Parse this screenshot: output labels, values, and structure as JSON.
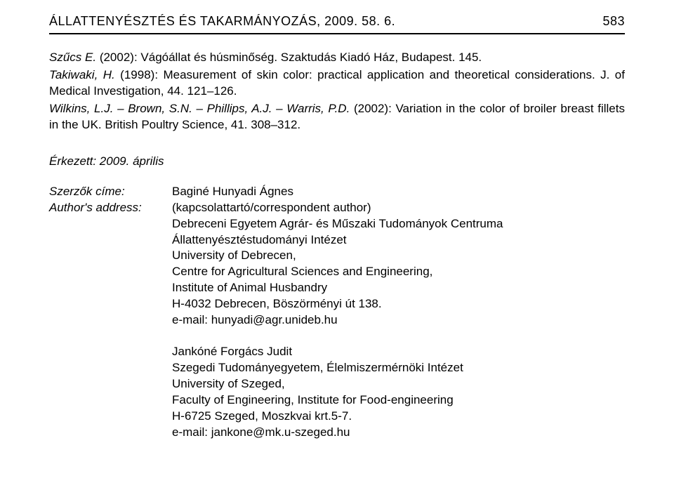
{
  "header": {
    "journal": "ÁLLATTENYÉSZTÉS ÉS TAKARMÁNYOZÁS, 2009. 58. 6.",
    "page_number": "583"
  },
  "references": {
    "ref1": {
      "authors": "Szűcs E.",
      "text": " (2002): Vágóállat és húsminőség. Szaktudás Kiadó Ház, Budapest. 145."
    },
    "ref2": {
      "authors": "Takiwaki, H.",
      "text": " (1998): Measurement of skin color: practical application and theoretical considerations. J. of Medical Investigation, 44. 121–126."
    },
    "ref3": {
      "authors": "Wilkins, L.J. – Brown, S.N. – Phillips, A.J. – Warris, P.D.",
      "text": " (2002): Variation in the color of broiler breast fillets in the UK. British Poultry Science, 41. 308–312."
    }
  },
  "arrival_label": "Érkezett: 2009. április",
  "addr": {
    "label1": "Szerzők címe:",
    "label2": "Author's address:",
    "block1": {
      "l1": "Baginé Hunyadi Ágnes",
      "l2": "(kapcsolattartó/correspondent author)",
      "l3": "Debreceni Egyetem Agrár- és Műszaki Tudományok Centruma",
      "l4": "Állattenyésztéstudományi Intézet",
      "l5": "University of Debrecen,",
      "l6": "Centre for Agricultural Sciences and Engineering,",
      "l7": "Institute of Animal Husbandry",
      "l8": "H-4032 Debrecen, Böszörményi út 138.",
      "l9": "e-mail: hunyadi@agr.unideb.hu"
    },
    "block2": {
      "l1": "Jankóné Forgács Judit",
      "l2": "Szegedi Tudományegyetem, Élelmiszermérnöki Intézet",
      "l3": "University of Szeged,",
      "l4": "Faculty of Engineering, Institute for Food-engineering",
      "l5": "H-6725 Szeged, Moszkvai krt.5-7.",
      "l6": "e-mail: jankone@mk.u-szeged.hu"
    }
  }
}
